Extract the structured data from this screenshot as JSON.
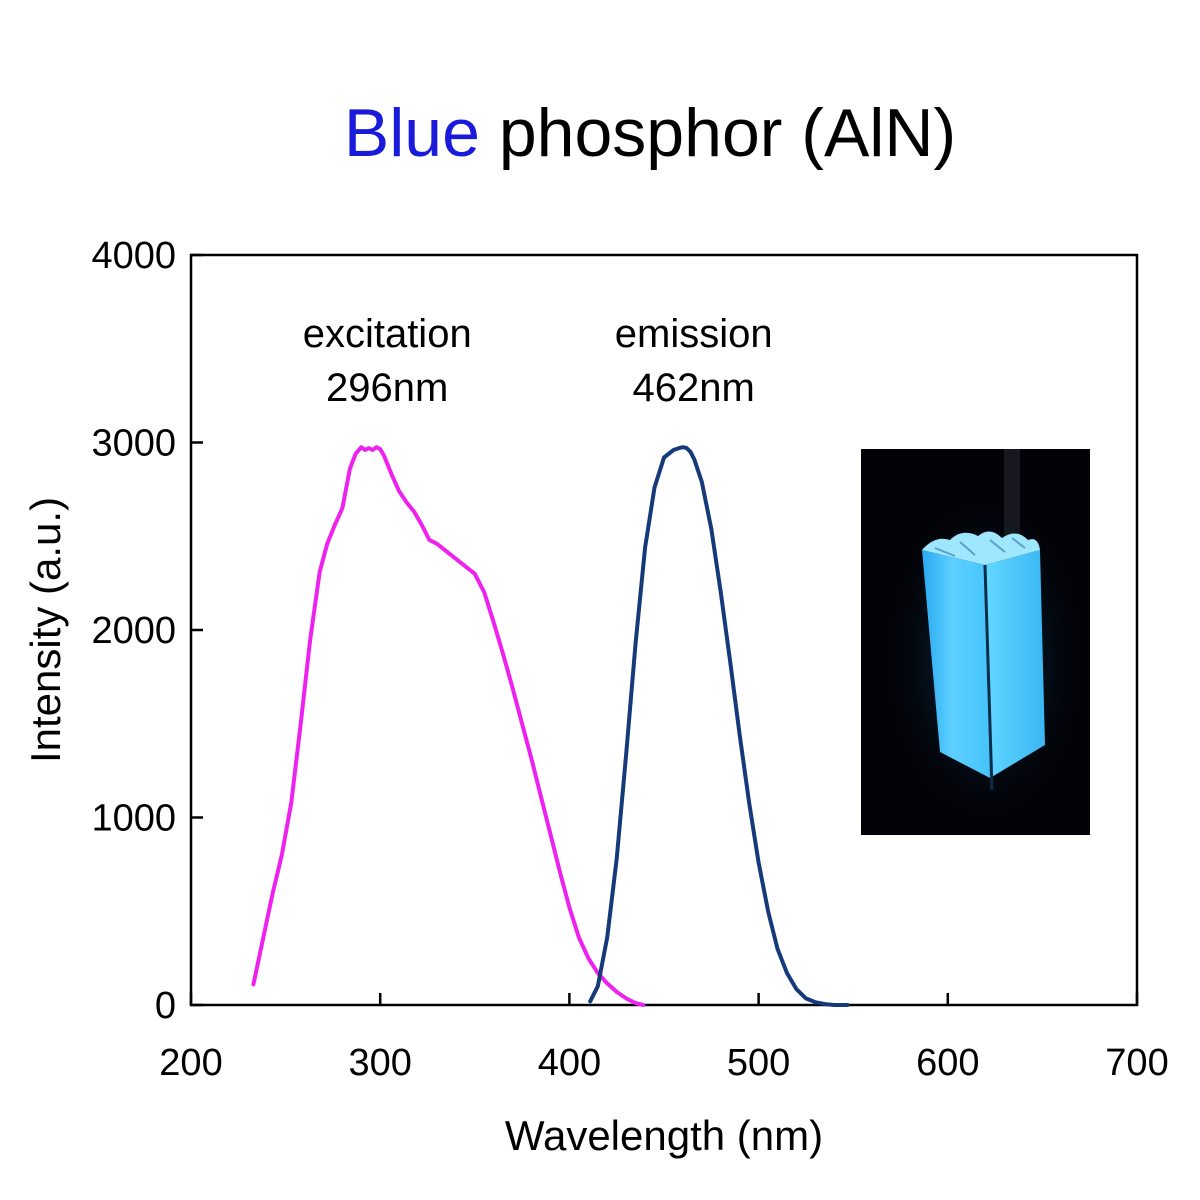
{
  "chart_data": {
    "type": "line",
    "title_parts": [
      {
        "text": "Blue",
        "color": "#1a1adb"
      },
      {
        "text": " phosphor (AlN)",
        "color": "#000000"
      }
    ],
    "xlabel": "Wavelength (nm)",
    "ylabel": "Intensity (a.u.)",
    "xlim": [
      200,
      700
    ],
    "ylim": [
      0,
      4000
    ],
    "x_ticks": [
      200,
      300,
      400,
      500,
      600,
      700
    ],
    "y_ticks": [
      0,
      1000,
      2000,
      3000,
      4000
    ],
    "grid": false,
    "series": [
      {
        "color": "#ee22ee",
        "x": [
          233,
          238,
          243,
          248,
          253,
          258,
          263,
          268,
          272,
          276,
          280,
          284,
          287,
          290,
          292,
          294,
          296,
          298,
          300,
          302,
          304,
          306,
          310,
          314,
          318,
          322,
          326,
          330,
          335,
          340,
          345,
          350,
          355,
          360,
          365,
          370,
          375,
          380,
          385,
          390,
          395,
          400,
          405,
          410,
          415,
          420,
          425,
          430,
          435,
          439
        ],
        "y": [
          110,
          350,
          590,
          800,
          1080,
          1500,
          1950,
          2310,
          2460,
          2560,
          2650,
          2860,
          2940,
          2975,
          2960,
          2970,
          2960,
          2975,
          2965,
          2930,
          2880,
          2830,
          2740,
          2680,
          2630,
          2560,
          2480,
          2460,
          2420,
          2380,
          2340,
          2300,
          2200,
          2040,
          1870,
          1690,
          1500,
          1310,
          1110,
          910,
          710,
          520,
          360,
          250,
          170,
          115,
          70,
          35,
          10,
          0
        ]
      },
      {
        "color": "#153a7a",
        "x": [
          411,
          415,
          420,
          425,
          430,
          435,
          440,
          445,
          450,
          455,
          458,
          460,
          462,
          464,
          466,
          470,
          475,
          480,
          485,
          490,
          495,
          500,
          505,
          510,
          515,
          520,
          525,
          530,
          535,
          540,
          547
        ],
        "y": [
          20,
          100,
          360,
          780,
          1340,
          1930,
          2440,
          2760,
          2920,
          2960,
          2970,
          2975,
          2970,
          2950,
          2910,
          2790,
          2540,
          2200,
          1830,
          1440,
          1080,
          760,
          500,
          300,
          170,
          85,
          35,
          15,
          5,
          0,
          0
        ]
      }
    ],
    "annotations": [
      {
        "line1": "excitation",
        "line2": "296nm",
        "x": 300,
        "y": 3500
      },
      {
        "line1": "emission",
        "line2": "462nm",
        "x": 462,
        "y": 3500
      }
    ],
    "inset_photo": {
      "description_icon": "glowing-cuvette-photo",
      "background": "#020308",
      "glow_color": "#47c7ff"
    }
  }
}
